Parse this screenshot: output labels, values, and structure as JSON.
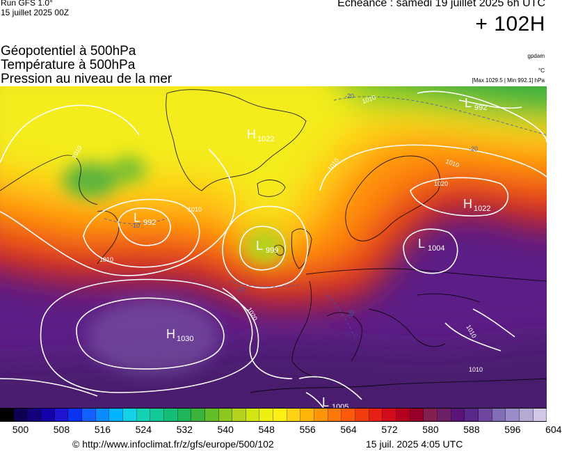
{
  "header": {
    "run_label": "Run GFS 1.0°",
    "run_date": "15 juillet 2025 00Z",
    "valid_label": "Echéance : samedi 19 juillet 2025 6h UTC",
    "lead_label": "+ 102H",
    "title_lines": [
      "Géopotentiel à 500hPa",
      "Température à 500hPa",
      "Pression au niveau de la mer"
    ],
    "unit_geopotential": "gpdam",
    "unit_temperature": "°C",
    "pressure_extremes": "[Max 1029.5 | Min 992.1] hPa"
  },
  "pressure_centers": [
    {
      "type": "H",
      "value": "1030"
    },
    {
      "type": "H",
      "value": "1022"
    },
    {
      "type": "H",
      "value": "1022"
    },
    {
      "type": "L",
      "value": "992"
    },
    {
      "type": "L",
      "value": "992"
    },
    {
      "type": "L",
      "value": "999"
    },
    {
      "type": "L",
      "value": "1004"
    },
    {
      "type": "L",
      "value": "1005"
    }
  ],
  "isobar_labels": [
    "1010",
    "1010",
    "1010",
    "1010",
    "1010",
    "1010",
    "1020",
    "1020",
    "1010",
    "1010"
  ],
  "temperature_labels": [
    "-20",
    "-20",
    "-10",
    "-10",
    "-10"
  ],
  "colorbar": {
    "colors": [
      "#000000",
      "#0d0050",
      "#14007a",
      "#1400a8",
      "#1e14d2",
      "#0a32f0",
      "#1460ff",
      "#0a8cff",
      "#00b4ff",
      "#14d2e6",
      "#14d2b4",
      "#14c896",
      "#14be78",
      "#1eb45a",
      "#3cb43c",
      "#64be28",
      "#8cc81e",
      "#b4d21e",
      "#d2e614",
      "#eef014",
      "#fff014",
      "#ffd214",
      "#ffb40a",
      "#ff960a",
      "#ff780a",
      "#ff5a0a",
      "#f03c0a",
      "#e61e14",
      "#d20a1e",
      "#b4001e",
      "#960028",
      "#821e50",
      "#6e1e64",
      "#5a1478",
      "#5a288c",
      "#6e46a0",
      "#826eb4",
      "#9a8cc8",
      "#b4aad2",
      "#d2c8e6"
    ],
    "tick_labels": [
      "500",
      "508",
      "516",
      "524",
      "532",
      "540",
      "548",
      "556",
      "564",
      "572",
      "580",
      "588",
      "596",
      "604"
    ]
  },
  "footer": {
    "url": "© http://www.infoclimat.fr/z/gfs/europe/500/102",
    "timestamp": "15 juil. 2025  4:05 UTC"
  }
}
